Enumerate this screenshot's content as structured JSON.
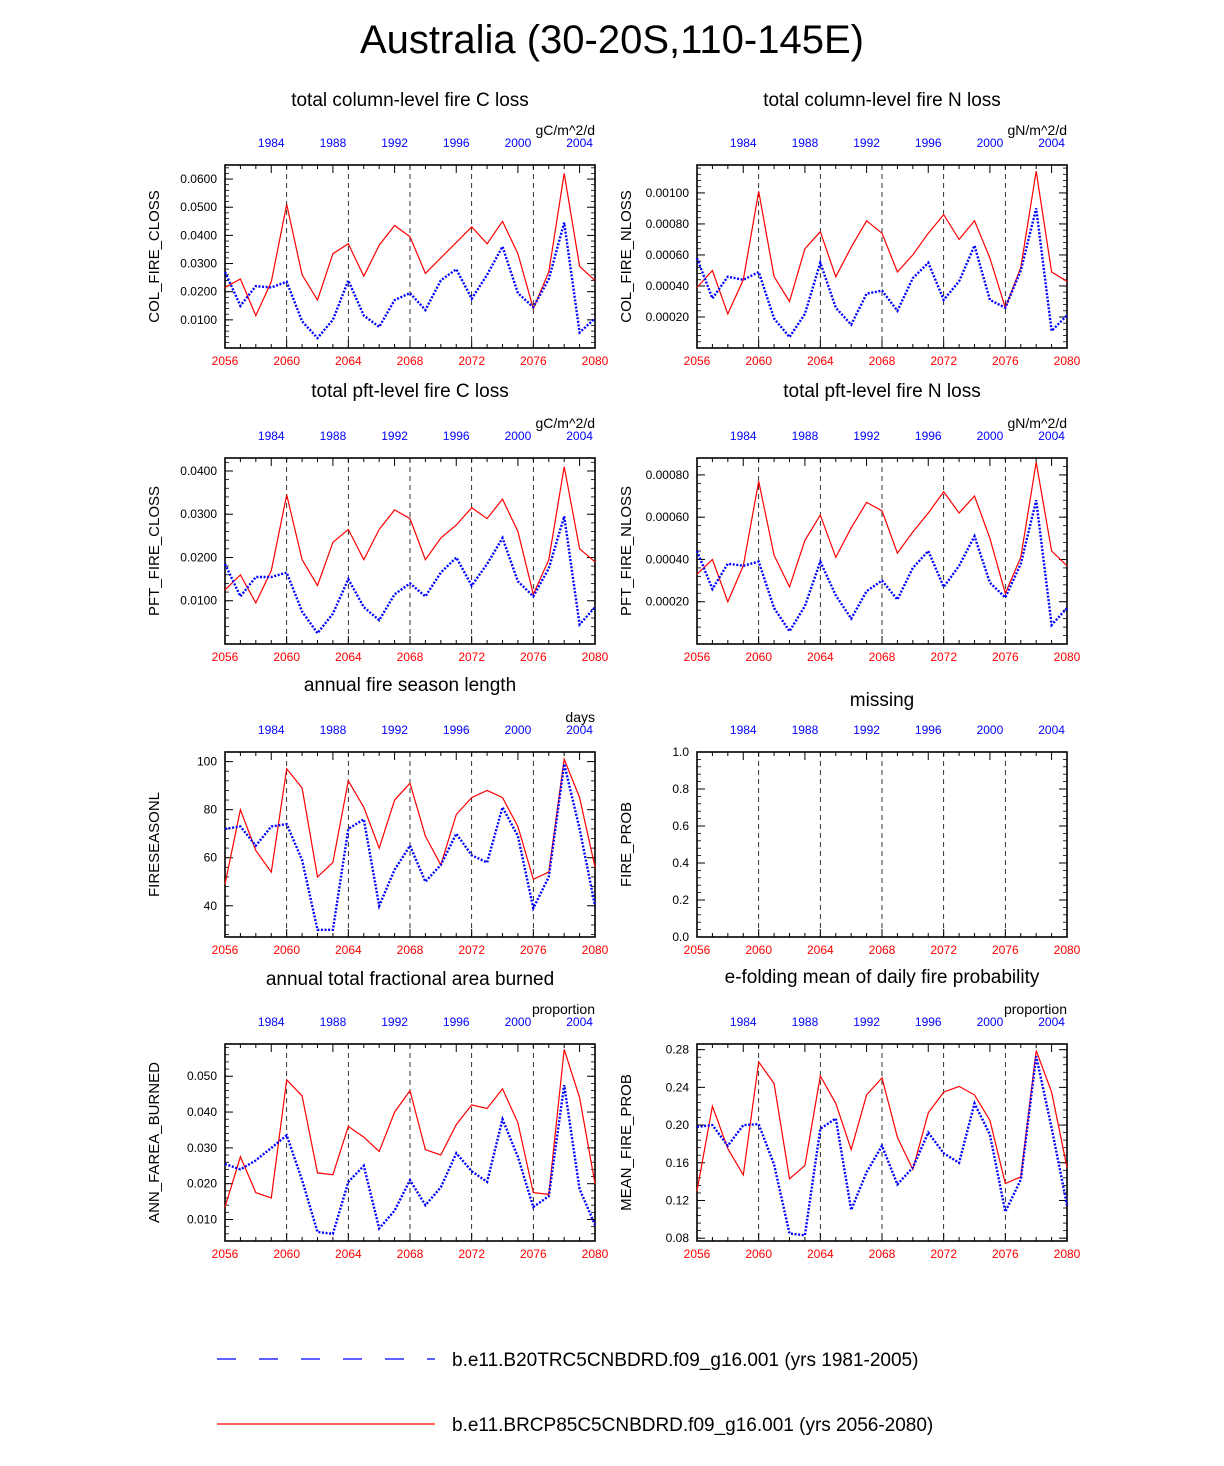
{
  "figure": {
    "title": "Australia (30-20S,110-145E)"
  },
  "chart_data": [
    {
      "type": "line",
      "title": "total column-level fire C loss",
      "ylabel": "COL_FIRE_CLOSS",
      "units": "gC/m^2/d",
      "ylim": [
        0,
        0.065
      ],
      "yticks": [
        0.01,
        0.02,
        0.03,
        0.04,
        0.05,
        0.06
      ],
      "ytick_labels": [
        "0.0100",
        "0.0200",
        "0.0300",
        "0.0400",
        "0.0500",
        "0.0600"
      ],
      "x": [
        2056,
        2057,
        2058,
        2059,
        2060,
        2061,
        2062,
        2063,
        2064,
        2065,
        2066,
        2067,
        2068,
        2069,
        2070,
        2071,
        2072,
        2073,
        2074,
        2075,
        2076,
        2077,
        2078,
        2079,
        2080
      ],
      "series": [
        {
          "name": "b.e11.BRCP85C5CNBDRD.f09_g16.001 (yrs 2056-2080)",
          "color": "#ff0000",
          "style": "solid",
          "values": [
            0.0215,
            0.0245,
            0.0115,
            0.0235,
            0.051,
            0.026,
            0.017,
            0.0335,
            0.037,
            0.0255,
            0.0365,
            0.0435,
            0.0395,
            0.0265,
            0.032,
            0.0375,
            0.043,
            0.037,
            0.045,
            0.0335,
            0.014,
            0.027,
            0.062,
            0.029,
            0.024
          ]
        },
        {
          "name": "b.e11.B20TRC5CNBDRD.f09_g16.001 (yrs 1981-2005)",
          "color": "#0000ff",
          "style": "dotted",
          "values": [
            0.027,
            0.015,
            0.022,
            0.0215,
            0.0235,
            0.0095,
            0.0035,
            0.01,
            0.024,
            0.0115,
            0.0075,
            0.017,
            0.0195,
            0.0135,
            0.024,
            0.028,
            0.0175,
            0.026,
            0.036,
            0.0195,
            0.0145,
            0.0245,
            0.0445,
            0.0055,
            0.0105
          ]
        }
      ]
    },
    {
      "type": "line",
      "title": "total column-level fire N loss",
      "ylabel": "COL_FIRE_NLOSS",
      "units": "gN/m^2/d",
      "ylim": [
        0,
        0.00118
      ],
      "yticks": [
        0.0002,
        0.0004,
        0.0006,
        0.0008,
        0.001
      ],
      "ytick_labels": [
        "0.00020",
        "0.00040",
        "0.00060",
        "0.00080",
        "0.00100"
      ],
      "x": [
        2056,
        2057,
        2058,
        2059,
        2060,
        2061,
        2062,
        2063,
        2064,
        2065,
        2066,
        2067,
        2068,
        2069,
        2070,
        2071,
        2072,
        2073,
        2074,
        2075,
        2076,
        2077,
        2078,
        2079,
        2080
      ],
      "series": [
        {
          "name": "b.e11.BRCP85C5CNBDRD.f09_g16.001 (yrs 2056-2080)",
          "color": "#ff0000",
          "style": "solid",
          "values": [
            0.00039,
            0.0005,
            0.00022,
            0.00044,
            0.00101,
            0.00046,
            0.0003,
            0.00064,
            0.00075,
            0.00046,
            0.00065,
            0.00082,
            0.00074,
            0.00049,
            0.0006,
            0.00074,
            0.00086,
            0.0007,
            0.00082,
            0.00058,
            0.00026,
            0.00052,
            0.00114,
            0.00049,
            0.00043
          ]
        },
        {
          "name": "b.e11.B20TRC5CNBDRD.f09_g16.001 (yrs 1981-2005)",
          "color": "#0000ff",
          "style": "dotted",
          "values": [
            0.00058,
            0.00032,
            0.00046,
            0.00044,
            0.00049,
            0.00019,
            7e-05,
            0.00022,
            0.00055,
            0.00026,
            0.00015,
            0.00035,
            0.00037,
            0.00024,
            0.00045,
            0.00055,
            0.00031,
            0.00043,
            0.00066,
            0.00031,
            0.00026,
            0.0005,
            0.0009,
            0.00011,
            0.00021
          ]
        }
      ]
    },
    {
      "type": "line",
      "title": "total pft-level fire C loss",
      "ylabel": "PFT_FIRE_CLOSS",
      "units": "gC/m^2/d",
      "ylim": [
        0,
        0.043
      ],
      "yticks": [
        0.01,
        0.02,
        0.03,
        0.04
      ],
      "ytick_labels": [
        "0.0100",
        "0.0200",
        "0.0300",
        "0.0400"
      ],
      "x": [
        2056,
        2057,
        2058,
        2059,
        2060,
        2061,
        2062,
        2063,
        2064,
        2065,
        2066,
        2067,
        2068,
        2069,
        2070,
        2071,
        2072,
        2073,
        2074,
        2075,
        2076,
        2077,
        2078,
        2079,
        2080
      ],
      "series": [
        {
          "name": "b.e11.BRCP85C5CNBDRD.f09_g16.001 (yrs 2056-2080)",
          "color": "#ff0000",
          "style": "solid",
          "values": [
            0.0125,
            0.016,
            0.0095,
            0.017,
            0.0345,
            0.0195,
            0.0135,
            0.0235,
            0.0265,
            0.0195,
            0.0265,
            0.031,
            0.029,
            0.0195,
            0.0245,
            0.0275,
            0.0315,
            0.029,
            0.0335,
            0.026,
            0.0115,
            0.0195,
            0.041,
            0.022,
            0.019
          ]
        },
        {
          "name": "b.e11.B20TRC5CNBDRD.f09_g16.001 (yrs 1981-2005)",
          "color": "#0000ff",
          "style": "dotted",
          "values": [
            0.0185,
            0.011,
            0.0155,
            0.0155,
            0.0165,
            0.0075,
            0.0025,
            0.007,
            0.015,
            0.0085,
            0.0055,
            0.0115,
            0.014,
            0.011,
            0.0165,
            0.02,
            0.0135,
            0.0185,
            0.0245,
            0.0145,
            0.011,
            0.0175,
            0.0295,
            0.0045,
            0.0085
          ]
        }
      ]
    },
    {
      "type": "line",
      "title": "total pft-level fire N loss",
      "ylabel": "PFT_FIRE_NLOSS",
      "units": "gN/m^2/d",
      "ylim": [
        0,
        0.00088
      ],
      "yticks": [
        0.0002,
        0.0004,
        0.0006,
        0.0008
      ],
      "ytick_labels": [
        "0.00020",
        "0.00040",
        "0.00060",
        "0.00080"
      ],
      "x": [
        2056,
        2057,
        2058,
        2059,
        2060,
        2061,
        2062,
        2063,
        2064,
        2065,
        2066,
        2067,
        2068,
        2069,
        2070,
        2071,
        2072,
        2073,
        2074,
        2075,
        2076,
        2077,
        2078,
        2079,
        2080
      ],
      "series": [
        {
          "name": "b.e11.BRCP85C5CNBDRD.f09_g16.001 (yrs 2056-2080)",
          "color": "#ff0000",
          "style": "solid",
          "values": [
            0.00033,
            0.0004,
            0.0002,
            0.00037,
            0.00077,
            0.00042,
            0.00027,
            0.00049,
            0.00061,
            0.00041,
            0.00055,
            0.00067,
            0.00063,
            0.00043,
            0.00053,
            0.00062,
            0.00072,
            0.00062,
            0.0007,
            0.0005,
            0.00024,
            0.00041,
            0.00086,
            0.00044,
            0.00037
          ]
        },
        {
          "name": "b.e11.B20TRC5CNBDRD.f09_g16.001 (yrs 1981-2005)",
          "color": "#0000ff",
          "style": "dotted",
          "values": [
            0.00044,
            0.00026,
            0.00038,
            0.00037,
            0.00039,
            0.00017,
            6e-05,
            0.00018,
            0.00039,
            0.00023,
            0.00012,
            0.00025,
            0.0003,
            0.00021,
            0.00036,
            0.00044,
            0.00027,
            0.00037,
            0.00051,
            0.00029,
            0.00022,
            0.00038,
            0.00068,
            9e-05,
            0.00017
          ]
        }
      ]
    },
    {
      "type": "line",
      "title": "annual fire season length",
      "ylabel": "FIRESEASONL",
      "units": "days",
      "ylim": [
        27,
        104
      ],
      "yticks": [
        40,
        60,
        80,
        100
      ],
      "ytick_labels": [
        "40",
        "60",
        "80",
        "100"
      ],
      "x": [
        2056,
        2057,
        2058,
        2059,
        2060,
        2061,
        2062,
        2063,
        2064,
        2065,
        2066,
        2067,
        2068,
        2069,
        2070,
        2071,
        2072,
        2073,
        2074,
        2075,
        2076,
        2077,
        2078,
        2079,
        2080
      ],
      "series": [
        {
          "name": "b.e11.BRCP85C5CNBDRD.f09_g16.001 (yrs 2056-2080)",
          "color": "#ff0000",
          "style": "solid",
          "values": [
            49,
            80,
            63,
            54,
            97,
            89,
            52,
            58,
            92,
            81,
            64,
            84,
            91,
            69,
            57,
            78,
            85,
            88,
            85,
            73,
            51,
            54,
            101,
            85,
            56
          ]
        },
        {
          "name": "b.e11.B20TRC5CNBDRD.f09_g16.001 (yrs 1981-2005)",
          "color": "#0000ff",
          "style": "dotted",
          "values": [
            72,
            73,
            65,
            73,
            74,
            59,
            30,
            30,
            72,
            76,
            40,
            55,
            65,
            50,
            57,
            70,
            61,
            58,
            81,
            69,
            39,
            52,
            99,
            72,
            40
          ]
        }
      ]
    },
    {
      "type": "line",
      "title": "missing",
      "ylabel": "FIRE_PROB",
      "units": "",
      "ylim": [
        0,
        1
      ],
      "yticks": [
        0,
        0.2,
        0.4,
        0.6,
        0.8,
        1.0
      ],
      "ytick_labels": [
        "0.0",
        "0.2",
        "0.4",
        "0.6",
        "0.8",
        "1.0"
      ],
      "x": [],
      "series": []
    },
    {
      "type": "line",
      "title": "annual total fractional area burned",
      "ylabel": "ANN_FAREA_BURNED",
      "units": "proportion",
      "ylim": [
        0.004,
        0.059
      ],
      "yticks": [
        0.01,
        0.02,
        0.03,
        0.04,
        0.05
      ],
      "ytick_labels": [
        "0.010",
        "0.020",
        "0.030",
        "0.040",
        "0.050"
      ],
      "x": [
        2056,
        2057,
        2058,
        2059,
        2060,
        2061,
        2062,
        2063,
        2064,
        2065,
        2066,
        2067,
        2068,
        2069,
        2070,
        2071,
        2072,
        2073,
        2074,
        2075,
        2076,
        2077,
        2078,
        2079,
        2080
      ],
      "series": [
        {
          "name": "b.e11.BRCP85C5CNBDRD.f09_g16.001 (yrs 2056-2080)",
          "color": "#ff0000",
          "style": "solid",
          "values": [
            0.0135,
            0.0275,
            0.0175,
            0.016,
            0.049,
            0.0445,
            0.023,
            0.0225,
            0.036,
            0.033,
            0.029,
            0.04,
            0.046,
            0.0295,
            0.028,
            0.0365,
            0.042,
            0.041,
            0.0465,
            0.037,
            0.0175,
            0.017,
            0.0575,
            0.044,
            0.02
          ]
        },
        {
          "name": "b.e11.B20TRC5CNBDRD.f09_g16.001 (yrs 1981-2005)",
          "color": "#0000ff",
          "style": "dotted",
          "values": [
            0.0255,
            0.024,
            0.0265,
            0.03,
            0.0335,
            0.021,
            0.0065,
            0.006,
            0.0205,
            0.025,
            0.0075,
            0.0125,
            0.021,
            0.014,
            0.019,
            0.0285,
            0.0235,
            0.0205,
            0.038,
            0.0275,
            0.0135,
            0.0165,
            0.0475,
            0.0185,
            0.0085
          ]
        }
      ]
    },
    {
      "type": "line",
      "title": "e-folding mean of daily fire probability",
      "ylabel": "MEAN_FIRE_PROB",
      "units": "proportion",
      "ylim": [
        0.077,
        0.286
      ],
      "yticks": [
        0.08,
        0.12,
        0.16,
        0.2,
        0.24,
        0.28
      ],
      "ytick_labels": [
        "0.08",
        "0.12",
        "0.16",
        "0.20",
        "0.24",
        "0.28"
      ],
      "x": [
        2056,
        2057,
        2058,
        2059,
        2060,
        2061,
        2062,
        2063,
        2064,
        2065,
        2066,
        2067,
        2068,
        2069,
        2070,
        2071,
        2072,
        2073,
        2074,
        2075,
        2076,
        2077,
        2078,
        2079,
        2080
      ],
      "series": [
        {
          "name": "b.e11.BRCP85C5CNBDRD.f09_g16.001 (yrs 2056-2080)",
          "color": "#ff0000",
          "style": "solid",
          "values": [
            0.13,
            0.22,
            0.175,
            0.147,
            0.267,
            0.244,
            0.143,
            0.157,
            0.252,
            0.223,
            0.174,
            0.232,
            0.25,
            0.187,
            0.153,
            0.213,
            0.235,
            0.241,
            0.232,
            0.205,
            0.138,
            0.145,
            0.279,
            0.235,
            0.155
          ]
        },
        {
          "name": "b.e11.B20TRC5CNBDRD.f09_g16.001 (yrs 1981-2005)",
          "color": "#0000ff",
          "style": "dotted",
          "values": [
            0.198,
            0.2,
            0.178,
            0.2,
            0.201,
            0.158,
            0.085,
            0.083,
            0.196,
            0.207,
            0.11,
            0.15,
            0.178,
            0.137,
            0.155,
            0.192,
            0.17,
            0.16,
            0.223,
            0.19,
            0.108,
            0.142,
            0.273,
            0.197,
            0.115
          ]
        }
      ]
    }
  ],
  "axes": {
    "bottom_ticks": [
      2056,
      2060,
      2064,
      2068,
      2072,
      2076,
      2080
    ],
    "bottom_color": "#ff0000",
    "top_ticks": [
      1984,
      1988,
      1992,
      1996,
      2000,
      2004
    ],
    "top_color": "#0000ff",
    "dashed_years": [
      2060,
      2064,
      2068,
      2072,
      2076
    ]
  },
  "legend": [
    {
      "label": "b.e11.B20TRC5CNBDRD.f09_g16.001 (yrs 1981-2005)",
      "color": "#0000ff",
      "style": "dashed"
    },
    {
      "label": "b.e11.BRCP85C5CNBDRD.f09_g16.001 (yrs 2056-2080)",
      "color": "#ff0000",
      "style": "solid"
    }
  ]
}
